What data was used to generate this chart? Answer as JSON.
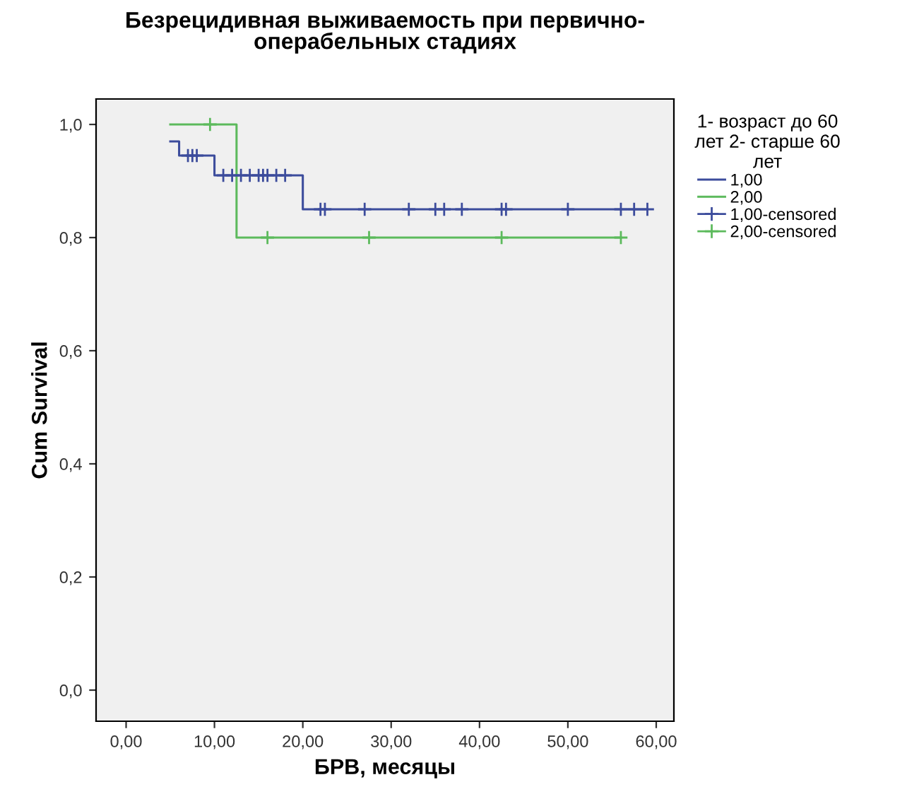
{
  "chart_data": {
    "type": "step",
    "title": "Безрецидивная выживаемость при первично-\nоперабельных стадиях",
    "xlabel": "БРВ, месяцы",
    "ylabel": "Cum Survival",
    "legend_title": "1- возраст до 60\nлет 2- старше 60\nлет",
    "series": [
      {
        "name": "1,00",
        "color": "#3c4c9c",
        "x": [
          5,
          6,
          10,
          20,
          59
        ],
        "values": [
          0.97,
          0.945,
          0.91,
          0.85,
          0.85
        ]
      },
      {
        "name": "2,00",
        "color": "#5cba5c",
        "x": [
          5,
          12.5,
          56
        ],
        "values": [
          1.0,
          0.8,
          0.8
        ]
      },
      {
        "name": "1,00-censored",
        "type": "scatter",
        "marker": "cross",
        "color": "#3c4c9c",
        "x": [
          7,
          7.5,
          8,
          11,
          12,
          13,
          14,
          15,
          15.5,
          16,
          17,
          18,
          22,
          22.5,
          27,
          32,
          35,
          36,
          38,
          42.5,
          43,
          50,
          56,
          57.5,
          59
        ],
        "values": [
          0.945,
          0.945,
          0.945,
          0.91,
          0.91,
          0.91,
          0.91,
          0.91,
          0.91,
          0.91,
          0.91,
          0.91,
          0.85,
          0.85,
          0.85,
          0.85,
          0.85,
          0.85,
          0.85,
          0.85,
          0.85,
          0.85,
          0.85,
          0.85,
          0.85
        ]
      },
      {
        "name": "2,00-censored",
        "type": "scatter",
        "marker": "cross",
        "color": "#5cba5c",
        "x": [
          9.5,
          16,
          27.5,
          42.5,
          56
        ],
        "values": [
          1.0,
          0.8,
          0.8,
          0.8,
          0.8
        ]
      }
    ],
    "xlim": [
      -3.4,
      62
    ],
    "xticks": [
      {
        "value": 0,
        "label": "0,00"
      },
      {
        "value": 10,
        "label": "10,00"
      },
      {
        "value": 20,
        "label": "20,00"
      },
      {
        "value": 30,
        "label": "30,00"
      },
      {
        "value": 40,
        "label": "40,00"
      },
      {
        "value": 50,
        "label": "50,00"
      },
      {
        "value": 60,
        "label": "60,00"
      }
    ],
    "ylim": [
      -0.055,
      1.045
    ],
    "yticks": [
      {
        "value": 0,
        "label": "0,0"
      },
      {
        "value": 0.2,
        "label": "0,2"
      },
      {
        "value": 0.4,
        "label": "0,4"
      },
      {
        "value": 0.6,
        "label": "0,6"
      },
      {
        "value": 0.8,
        "label": "0,8"
      },
      {
        "value": 1.0,
        "label": "1,0"
      }
    ],
    "grid": false,
    "legend": "right"
  }
}
